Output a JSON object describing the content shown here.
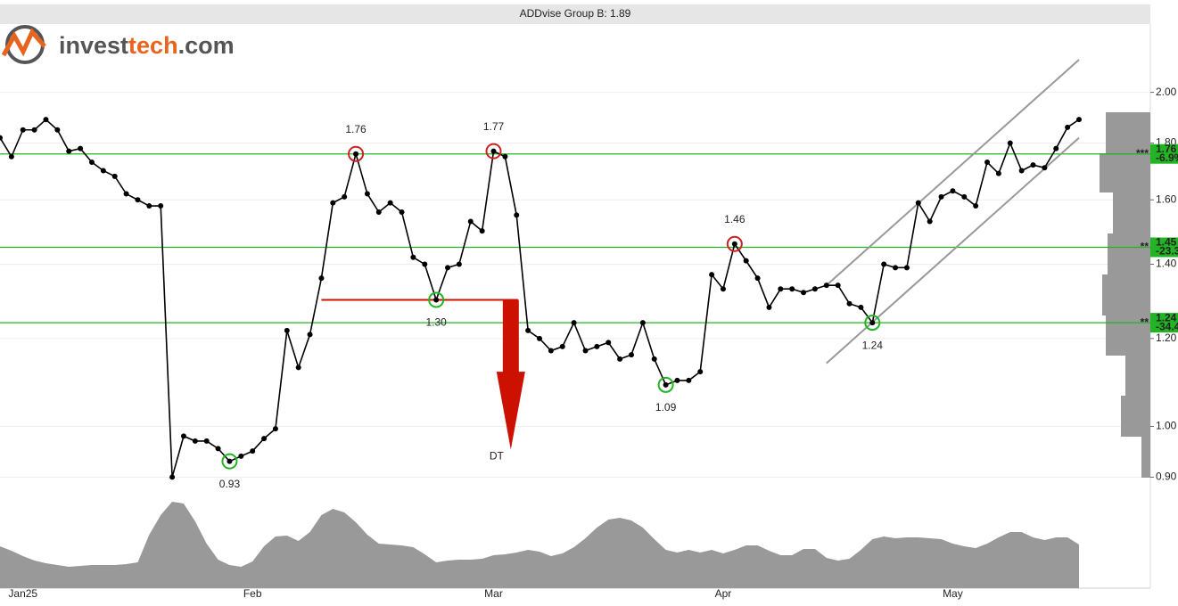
{
  "logo": {
    "prefix": "invest",
    "accent": "tech",
    "suffix": ".com"
  },
  "chart_data": {
    "type": "line",
    "title": "ADDvise Group B: 1.89",
    "log_scale": true,
    "grid": true,
    "categories": [
      null,
      null,
      "Jan25",
      null,
      null,
      null,
      null,
      null,
      null,
      null,
      null,
      null,
      null,
      null,
      null,
      null,
      null,
      null,
      null,
      null,
      null,
      null,
      "Feb",
      null,
      null,
      null,
      null,
      null,
      null,
      null,
      null,
      null,
      null,
      null,
      null,
      null,
      null,
      null,
      null,
      null,
      null,
      null,
      null,
      "Mar",
      null,
      null,
      null,
      null,
      null,
      null,
      null,
      null,
      null,
      null,
      null,
      null,
      null,
      null,
      null,
      null,
      null,
      null,
      null,
      "Apr",
      null,
      null,
      null,
      null,
      null,
      null,
      null,
      null,
      null,
      null,
      null,
      null,
      null,
      null,
      null,
      null,
      null,
      null,
      null,
      "May",
      null,
      null,
      null,
      null,
      null,
      null,
      null,
      null,
      null,
      null,
      null
    ],
    "ylim": [
      0.86,
      2.3
    ],
    "yticks": [
      {
        "value": 0.9,
        "label": "0.90"
      },
      {
        "value": 1,
        "label": "1.00"
      },
      {
        "value": 1.2,
        "label": "1.20"
      },
      {
        "value": 1.4,
        "label": "1.40"
      },
      {
        "value": 1.6,
        "label": "1.60"
      },
      {
        "value": 1.8,
        "label": "1.80"
      },
      {
        "value": 2,
        "label": "2.00"
      }
    ],
    "series": [
      {
        "name": "Price",
        "color": "#000000",
        "values": [
          1.82,
          1.75,
          1.85,
          1.85,
          1.89,
          1.85,
          1.77,
          1.78,
          1.73,
          1.7,
          1.68,
          1.62,
          1.6,
          1.58,
          1.58,
          0.9,
          0.98,
          0.97,
          0.97,
          0.955,
          0.93,
          0.94,
          0.95,
          0.975,
          0.995,
          1.22,
          1.13,
          1.21,
          1.36,
          1.59,
          1.61,
          1.76,
          1.62,
          1.56,
          1.59,
          1.56,
          1.42,
          1.4,
          1.3,
          1.39,
          1.4,
          1.53,
          1.5,
          1.77,
          1.75,
          1.55,
          1.22,
          1.2,
          1.17,
          1.18,
          1.24,
          1.17,
          1.18,
          1.19,
          1.15,
          1.16,
          1.24,
          1.15,
          1.09,
          1.1,
          1.1,
          1.12,
          1.37,
          1.33,
          1.46,
          1.41,
          1.36,
          1.28,
          1.33,
          1.33,
          1.32,
          1.33,
          1.34,
          1.34,
          1.29,
          1.28,
          1.24,
          1.4,
          1.39,
          1.39,
          1.59,
          1.53,
          1.61,
          1.63,
          1.61,
          1.58,
          1.73,
          1.69,
          1.8,
          1.7,
          1.72,
          1.71,
          1.78,
          1.86,
          1.89
        ]
      },
      {
        "name": "Volume",
        "color": "#999999",
        "panel": "volume",
        "values": [
          47,
          42,
          36,
          31,
          28,
          26,
          24,
          25,
          26,
          26,
          26,
          27,
          29,
          60,
          82,
          97,
          95,
          75,
          50,
          32,
          26,
          24,
          30,
          47,
          58,
          59,
          53,
          63,
          82,
          89,
          85,
          74,
          60,
          50,
          49,
          48,
          46,
          38,
          29,
          31,
          32,
          32,
          33,
          37,
          38,
          40,
          43,
          41,
          36,
          39,
          46,
          56,
          68,
          77,
          79,
          76,
          68,
          55,
          43,
          40,
          43,
          40,
          43,
          39,
          43,
          48,
          48,
          42,
          37,
          37,
          44,
          44,
          34,
          31,
          33,
          43,
          55,
          58,
          56,
          57,
          57,
          56,
          55,
          50,
          47,
          45,
          50,
          57,
          63,
          63,
          57,
          54,
          57,
          57,
          49
        ]
      }
    ],
    "volume_ylim": [
      0,
      100
    ],
    "pivots": [
      {
        "index": 31,
        "label": "1.76",
        "kind": "high"
      },
      {
        "index": 43,
        "label": "1.77",
        "kind": "high"
      },
      {
        "index": 64,
        "label": "1.46",
        "kind": "high"
      },
      {
        "index": 20,
        "label": "0.93",
        "kind": "low"
      },
      {
        "index": 38,
        "label": "1.30",
        "kind": "low"
      },
      {
        "index": 58,
        "label": "1.09",
        "kind": "low"
      },
      {
        "index": 76,
        "label": "1.24",
        "kind": "low"
      }
    ],
    "levels": [
      {
        "value": 1.76,
        "label": "1.76",
        "change": "-6.9%",
        "stars": "***",
        "color": "#22b422"
      },
      {
        "value": 1.45,
        "label": "1.45",
        "change": "-23.3%",
        "stars": "**",
        "color": "#22b422"
      },
      {
        "value": 1.24,
        "label": "1.24",
        "change": "-34.4%",
        "stars": "**",
        "color": "#22b422"
      }
    ],
    "channel": {
      "start": 72,
      "end": 94,
      "upper": [
        1.34,
        2.14
      ],
      "lower": [
        1.14,
        1.82
      ],
      "color": "#999999"
    },
    "breakdown": {
      "label": "DT",
      "level": 1.3,
      "start": 28,
      "end": 44.5,
      "target": 0.953,
      "color": "#cc1100"
    }
  }
}
